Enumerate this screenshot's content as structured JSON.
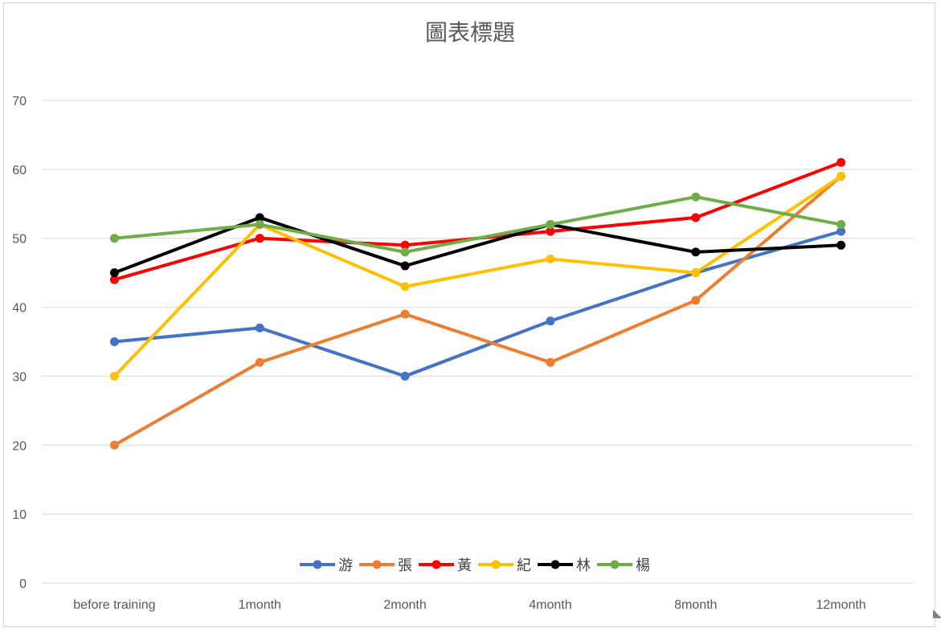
{
  "chart_data": {
    "type": "line",
    "title": "圖表標題",
    "xlabel": "",
    "ylabel": "",
    "categories": [
      "before training",
      "1month",
      "2month",
      "4month",
      "8month",
      "12month"
    ],
    "ylim": [
      0,
      70
    ],
    "yticks": [
      0,
      10,
      20,
      30,
      40,
      50,
      60,
      70
    ],
    "grid": true,
    "legend_position": "bottom",
    "series": [
      {
        "name": "游",
        "color": "#4472C4",
        "values": [
          35,
          37,
          30,
          38,
          45,
          51
        ]
      },
      {
        "name": "張",
        "color": "#ED7D31",
        "values": [
          20,
          32,
          39,
          32,
          41,
          59
        ]
      },
      {
        "name": "黃",
        "color": "#FF0000",
        "values": [
          44,
          50,
          49,
          51,
          53,
          61
        ]
      },
      {
        "name": "紀",
        "color": "#FFC000",
        "values": [
          30,
          52,
          43,
          47,
          45,
          59
        ]
      },
      {
        "name": "林",
        "color": "#000000",
        "values": [
          45,
          53,
          46,
          52,
          48,
          49
        ]
      },
      {
        "name": "楊",
        "color": "#70AD47",
        "values": [
          50,
          52,
          48,
          52,
          56,
          52
        ]
      }
    ]
  }
}
